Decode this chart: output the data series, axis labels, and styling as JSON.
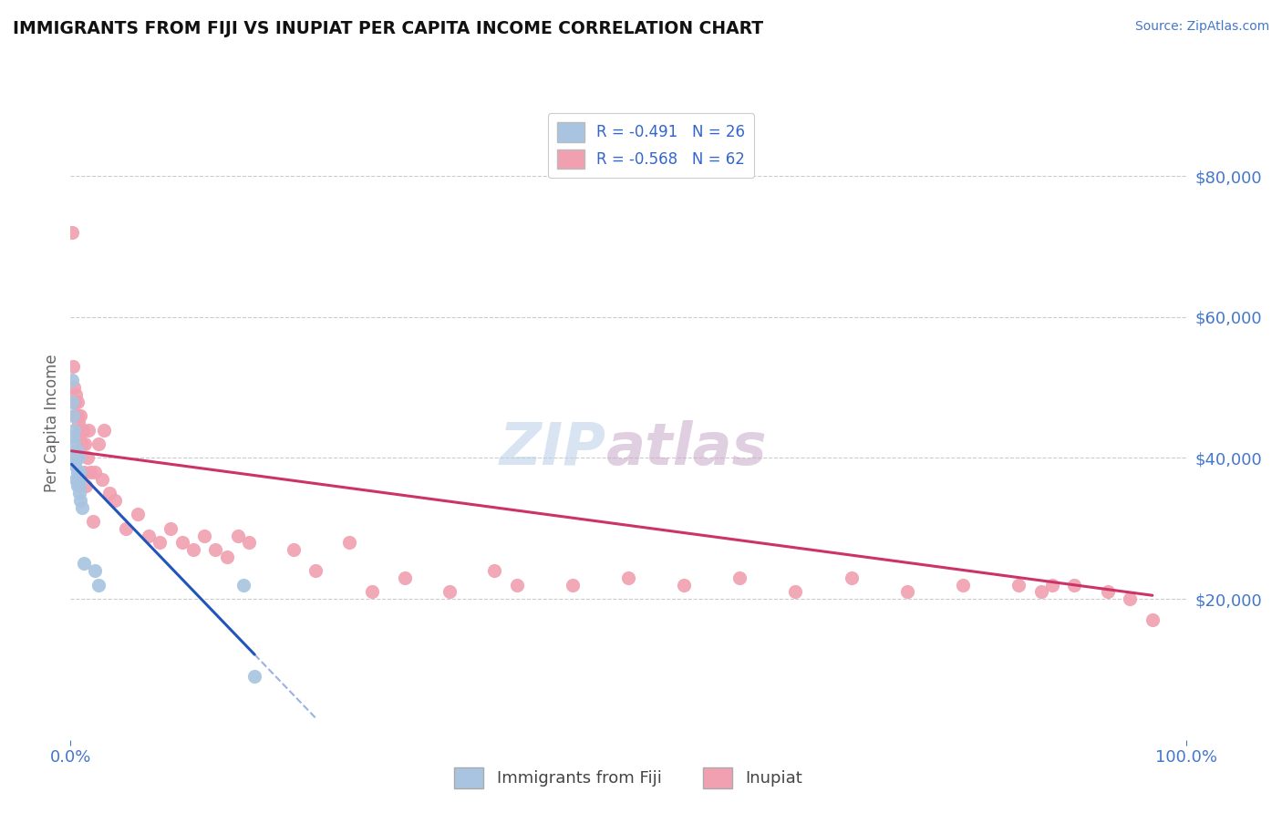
{
  "title": "IMMIGRANTS FROM FIJI VS INUPIAT PER CAPITA INCOME CORRELATION CHART",
  "source": "Source: ZipAtlas.com",
  "xlabel": "",
  "ylabel": "Per Capita Income",
  "xlim": [
    0,
    1.0
  ],
  "ylim": [
    0,
    90000
  ],
  "xticks": [
    0.0,
    1.0
  ],
  "xticklabels": [
    "0.0%",
    "100.0%"
  ],
  "ytick_positions": [
    20000,
    40000,
    60000,
    80000
  ],
  "ytick_labels": [
    "$20,000",
    "$40,000",
    "$60,000",
    "$80,000"
  ],
  "grid_color": "#cccccc",
  "background_color": "#ffffff",
  "fiji_color": "#a8c4e0",
  "inupiat_color": "#f0a0b0",
  "fiji_line_color": "#2255bb",
  "inupiat_line_color": "#cc3366",
  "fiji_r": -0.491,
  "fiji_n": 26,
  "inupiat_r": -0.568,
  "inupiat_n": 62,
  "label_fiji": "Immigrants from Fiji",
  "label_inupiat": "Inupiat",
  "fiji_scatter_x": [
    0.001,
    0.001,
    0.002,
    0.002,
    0.003,
    0.003,
    0.003,
    0.004,
    0.004,
    0.005,
    0.005,
    0.006,
    0.006,
    0.006,
    0.007,
    0.007,
    0.008,
    0.008,
    0.008,
    0.009,
    0.01,
    0.012,
    0.022,
    0.025,
    0.155,
    0.165
  ],
  "fiji_scatter_y": [
    51000,
    48000,
    46000,
    43000,
    44000,
    42000,
    40000,
    41000,
    39000,
    40000,
    37000,
    41000,
    38000,
    36000,
    40000,
    37000,
    38000,
    35000,
    36000,
    34000,
    33000,
    25000,
    24000,
    22000,
    22000,
    9000
  ],
  "inupiat_scatter_x": [
    0.001,
    0.002,
    0.003,
    0.004,
    0.004,
    0.005,
    0.006,
    0.006,
    0.007,
    0.008,
    0.008,
    0.009,
    0.01,
    0.011,
    0.012,
    0.013,
    0.014,
    0.015,
    0.016,
    0.018,
    0.02,
    0.022,
    0.025,
    0.028,
    0.03,
    0.035,
    0.04,
    0.05,
    0.06,
    0.07,
    0.08,
    0.09,
    0.1,
    0.11,
    0.12,
    0.13,
    0.14,
    0.15,
    0.16,
    0.2,
    0.22,
    0.25,
    0.27,
    0.3,
    0.34,
    0.38,
    0.4,
    0.45,
    0.5,
    0.55,
    0.6,
    0.65,
    0.7,
    0.75,
    0.8,
    0.85,
    0.87,
    0.88,
    0.9,
    0.93,
    0.95,
    0.97
  ],
  "inupiat_scatter_y": [
    72000,
    53000,
    50000,
    48000,
    46000,
    49000,
    46000,
    48000,
    45000,
    44000,
    43000,
    46000,
    42000,
    44000,
    38000,
    42000,
    36000,
    40000,
    44000,
    38000,
    31000,
    38000,
    42000,
    37000,
    44000,
    35000,
    34000,
    30000,
    32000,
    29000,
    28000,
    30000,
    28000,
    27000,
    29000,
    27000,
    26000,
    29000,
    28000,
    27000,
    24000,
    28000,
    21000,
    23000,
    21000,
    24000,
    22000,
    22000,
    23000,
    22000,
    23000,
    21000,
    23000,
    21000,
    22000,
    22000,
    21000,
    22000,
    22000,
    21000,
    20000,
    17000
  ],
  "fiji_line_x0": 0.001,
  "fiji_line_x1": 0.165,
  "fiji_line_x2": 0.22,
  "inupiat_line_x0": 0.001,
  "inupiat_line_x1": 0.97,
  "inupiat_line_y0": 41000,
  "inupiat_line_y1": 20500
}
